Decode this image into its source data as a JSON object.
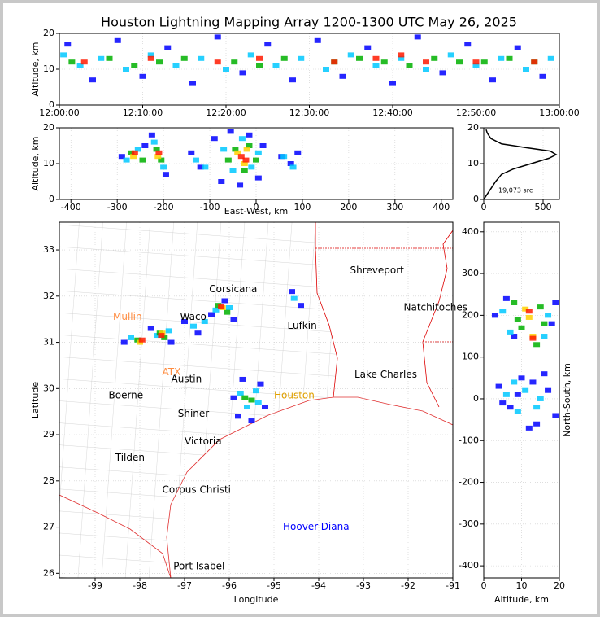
{
  "chart_data": [
    {
      "type": "scatter",
      "title": "Houston Lightning Mapping Array 1200-1300 UTC May 26, 2025",
      "ylabel": "Altitude, km",
      "xlim": [
        0,
        60
      ],
      "ylim": [
        0,
        20
      ],
      "xticks": [
        {
          "value": 0,
          "label": "12:00:00"
        },
        {
          "value": 10,
          "label": "12:10:00"
        },
        {
          "value": 20,
          "label": "12:20:00"
        },
        {
          "value": 30,
          "label": "12:30:00"
        },
        {
          "value": 40,
          "label": "12:40:00"
        },
        {
          "value": 50,
          "label": "12:50:00"
        },
        {
          "value": 60,
          "label": "13:00:00"
        }
      ],
      "yticks": [
        0,
        10,
        20
      ],
      "grid": true,
      "series": [
        {
          "color": "#0000ff",
          "x": [
            1,
            4,
            7,
            10,
            13,
            16,
            19,
            22,
            25,
            28,
            31,
            34,
            37,
            40,
            43,
            46,
            49,
            52,
            55,
            58
          ],
          "values": [
            17,
            7,
            18,
            8,
            16,
            6,
            19,
            9,
            17,
            7,
            18,
            8,
            16,
            6,
            19,
            9,
            17,
            7,
            16,
            8
          ]
        },
        {
          "color": "#00c8ff",
          "x": [
            0.5,
            2.5,
            5,
            8,
            11,
            14,
            17,
            20,
            23,
            26,
            29,
            32,
            35,
            38,
            41,
            44,
            47,
            50,
            53,
            56,
            59
          ],
          "values": [
            14,
            11,
            13,
            10,
            14,
            11,
            13,
            10,
            14,
            11,
            13,
            10,
            14,
            11,
            13,
            10,
            14,
            11,
            13,
            10,
            13
          ]
        },
        {
          "color": "#00b000",
          "x": [
            1.5,
            6,
            9,
            12,
            15,
            21,
            24,
            27,
            33,
            36,
            39,
            42,
            45,
            48,
            51,
            54,
            57
          ],
          "values": [
            12,
            13,
            11,
            12,
            13,
            12,
            11,
            13,
            12,
            13,
            12,
            11,
            13,
            12,
            12,
            13,
            12
          ]
        },
        {
          "color": "#ff1a00",
          "x": [
            3,
            11,
            19,
            24,
            33,
            38,
            41,
            44,
            50,
            57
          ],
          "values": [
            12,
            13,
            12,
            13,
            12,
            13,
            14,
            12,
            12,
            12
          ]
        }
      ]
    },
    {
      "type": "scatter",
      "xlabel": "East-West, km",
      "ylabel": "Altitude, km",
      "xlim": [
        -425,
        425
      ],
      "ylim": [
        0,
        20
      ],
      "xticks": [
        -400,
        -300,
        -200,
        -100,
        0,
        100,
        200,
        300,
        400
      ],
      "yticks": [
        0,
        10,
        20
      ],
      "grid": true,
      "series": [
        {
          "color": "#0000ff",
          "x": [
            -290,
            -240,
            -225,
            -195,
            -140,
            -120,
            -90,
            -75,
            -55,
            -35,
            -15,
            5,
            15,
            55,
            75,
            90
          ],
          "values": [
            12,
            15,
            18,
            7,
            13,
            9,
            17,
            5,
            19,
            4,
            18,
            6,
            15,
            12,
            10,
            13
          ]
        },
        {
          "color": "#00c8ff",
          "x": [
            -280,
            -255,
            -220,
            -200,
            -130,
            -110,
            -70,
            -50,
            -30,
            -10,
            5,
            60,
            80
          ],
          "values": [
            11,
            14,
            16,
            9,
            11,
            9,
            14,
            8,
            17,
            9,
            13,
            12,
            9
          ]
        },
        {
          "color": "#00b000",
          "x": [
            -270,
            -245,
            -215,
            -205,
            -60,
            -45,
            -25,
            -15,
            0
          ],
          "values": [
            13,
            11,
            14,
            11,
            11,
            14,
            8,
            15,
            11
          ]
        },
        {
          "color": "#ffd000",
          "x": [
            -265,
            -212,
            -40,
            -25,
            -20
          ],
          "values": [
            12,
            12,
            13,
            10,
            14
          ]
        },
        {
          "color": "#ff1a00",
          "x": [
            -262,
            -210,
            -32,
            -22
          ],
          "values": [
            13,
            13,
            12,
            11
          ]
        }
      ]
    },
    {
      "type": "line",
      "xlim": [
        0,
        637
      ],
      "ylim": [
        0,
        20
      ],
      "xticks": [
        0,
        500
      ],
      "yticks": [
        0,
        10,
        20
      ],
      "grid": true,
      "annotation": "19,073 src",
      "series": [
        {
          "color": "#000000",
          "x": [
            0,
            20,
            40,
            60,
            100,
            150,
            250,
            400,
            550,
            610,
            560,
            350,
            150,
            60,
            30,
            20
          ],
          "values": [
            0,
            1,
            2,
            3,
            5,
            7,
            8.5,
            10,
            11.5,
            12.5,
            13.5,
            14.5,
            15.5,
            17,
            18.5,
            19.5
          ]
        }
      ]
    },
    {
      "type": "scatter",
      "xlabel": "Longitude",
      "ylabel": "Latitude",
      "xlim": [
        -99.8,
        -91
      ],
      "ylim": [
        25.9,
        33.6
      ],
      "xticks": [
        -99,
        -98,
        -97,
        -96,
        -95,
        -94,
        -93,
        -92,
        -91
      ],
      "yticks": [
        26,
        27,
        28,
        29,
        30,
        31,
        32,
        33
      ],
      "grid": true,
      "annotations": [
        {
          "text": "Shreveport",
          "x": -93.3,
          "y": 32.55,
          "color": "#000000"
        },
        {
          "text": "Natchitoches",
          "x": -92.1,
          "y": 31.75,
          "color": "#000000"
        },
        {
          "text": "Corsicana",
          "x": -96.45,
          "y": 32.15,
          "color": "#000000"
        },
        {
          "text": "Mullin",
          "x": -98.6,
          "y": 31.55,
          "color": "#ff8c40"
        },
        {
          "text": "Waco",
          "x": -97.1,
          "y": 31.55,
          "color": "#000000"
        },
        {
          "text": "Lufkin",
          "x": -94.7,
          "y": 31.35,
          "color": "#000000"
        },
        {
          "text": "ATX",
          "x": -97.5,
          "y": 30.35,
          "color": "#ff8c40"
        },
        {
          "text": "Austin",
          "x": -97.3,
          "y": 30.2,
          "color": "#000000"
        },
        {
          "text": "Boerne",
          "x": -98.7,
          "y": 29.85,
          "color": "#000000"
        },
        {
          "text": "Houston",
          "x": -95.0,
          "y": 29.85,
          "color": "#e0a000"
        },
        {
          "text": "Lake Charles",
          "x": -93.2,
          "y": 30.3,
          "color": "#000000"
        },
        {
          "text": "Shiner",
          "x": -97.15,
          "y": 29.45,
          "color": "#000000"
        },
        {
          "text": "Victoria",
          "x": -97.0,
          "y": 28.85,
          "color": "#000000"
        },
        {
          "text": "Tilden",
          "x": -98.55,
          "y": 28.5,
          "color": "#000000"
        },
        {
          "text": "Corpus Christi",
          "x": -97.5,
          "y": 27.8,
          "color": "#000000"
        },
        {
          "text": "Hoover-Diana",
          "x": -94.8,
          "y": 27.0,
          "color": "#0000ff"
        },
        {
          "text": "Port Isabel",
          "x": -97.25,
          "y": 26.15,
          "color": "#000000"
        }
      ],
      "series": [
        {
          "color": "#0000ff",
          "x": [
            -98.35,
            -97.75,
            -97.3,
            -97.0,
            -96.7,
            -96.4,
            -96.1,
            -95.9,
            -94.6,
            -94.4,
            -95.9,
            -95.8,
            -95.3,
            -95.2,
            -95.5,
            -95.7
          ],
          "values": [
            31.0,
            31.3,
            31.0,
            31.45,
            31.2,
            31.6,
            31.9,
            31.5,
            32.1,
            31.8,
            29.8,
            29.4,
            30.1,
            29.6,
            29.3,
            30.2
          ]
        },
        {
          "color": "#00c8ff",
          "x": [
            -98.2,
            -97.6,
            -97.35,
            -96.8,
            -96.55,
            -96.3,
            -96.0,
            -94.55,
            -95.75,
            -95.6,
            -95.4,
            -95.35
          ],
          "values": [
            31.1,
            31.15,
            31.25,
            31.35,
            31.45,
            31.7,
            31.75,
            31.95,
            29.9,
            29.6,
            29.95,
            29.7
          ]
        },
        {
          "color": "#00b000",
          "x": [
            -98.05,
            -97.55,
            -97.45,
            -96.25,
            -96.05,
            -95.65,
            -95.5
          ],
          "values": [
            31.05,
            31.2,
            31.1,
            31.8,
            31.65,
            29.8,
            29.75
          ]
        },
        {
          "color": "#ffd000",
          "x": [
            -98.0,
            -97.5,
            -96.15
          ],
          "values": [
            31.0,
            31.2,
            31.75
          ]
        },
        {
          "color": "#ff1a00",
          "x": [
            -97.95,
            -97.52,
            -96.18
          ],
          "values": [
            31.05,
            31.15,
            31.78
          ]
        }
      ]
    },
    {
      "type": "scatter",
      "xlabel": "Altitude, km",
      "ylabel": "North-South, km",
      "xlim": [
        0,
        20
      ],
      "ylim": [
        -429,
        423
      ],
      "xticks": [
        0,
        10,
        20
      ],
      "yticks": [
        -400,
        -300,
        -200,
        -100,
        0,
        100,
        200,
        300,
        400
      ],
      "grid": true,
      "series": [
        {
          "color": "#0000ff",
          "x": [
            3,
            6,
            8,
            18,
            19,
            4,
            7,
            10,
            14,
            17,
            19,
            5,
            12,
            16,
            9,
            13
          ],
          "values": [
            200,
            240,
            150,
            180,
            230,
            30,
            -20,
            50,
            -60,
            20,
            -40,
            -10,
            -70,
            60,
            10,
            40
          ]
        },
        {
          "color": "#00c8ff",
          "x": [
            5,
            7,
            17,
            16,
            6,
            9,
            15,
            8,
            11,
            14
          ],
          "values": [
            210,
            160,
            200,
            150,
            10,
            -30,
            0,
            40,
            20,
            -20
          ]
        },
        {
          "color": "#00b000",
          "x": [
            8,
            10,
            15,
            14,
            9,
            16
          ],
          "values": [
            230,
            170,
            220,
            130,
            190,
            180
          ]
        },
        {
          "color": "#ffd000",
          "x": [
            11,
            13,
            12
          ],
          "values": [
            215,
            150,
            195
          ]
        },
        {
          "color": "#ff1a00",
          "x": [
            12,
            13
          ],
          "values": [
            210,
            145
          ]
        }
      ]
    }
  ]
}
